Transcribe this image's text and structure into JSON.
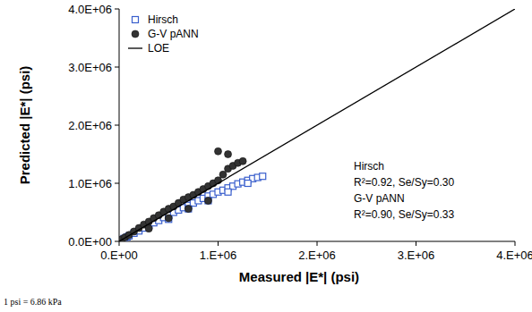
{
  "chart_data": {
    "type": "scatter",
    "x_label": "Measured |E*| (psi)",
    "y_label": "Predicted |E*| (psi)",
    "footnote": "1 psi = 6.86 kPa",
    "annotations": [
      "Hirsch",
      "R²=0.92, Se/Sy=0.30",
      "G-V pANN",
      "R²=0.90, Se/Sy=0.33"
    ],
    "xlim": [
      0,
      4000000
    ],
    "ylim": [
      0,
      4000000
    ],
    "xticks": [
      {
        "value": 0,
        "label": "0.E+00"
      },
      {
        "value": 1000000,
        "label": "1.E+06"
      },
      {
        "value": 2000000,
        "label": "2.E+06"
      },
      {
        "value": 3000000,
        "label": "3.E+06"
      },
      {
        "value": 4000000,
        "label": "4.E+06"
      }
    ],
    "yticks": [
      {
        "value": 0,
        "label": "0.0E+00"
      },
      {
        "value": 1000000,
        "label": "1.0E+06"
      },
      {
        "value": 2000000,
        "label": "2.0E+06"
      },
      {
        "value": 3000000,
        "label": "3.0E+06"
      },
      {
        "value": 4000000,
        "label": "4.0E+06"
      }
    ],
    "grid": false,
    "legend": "upper left",
    "series": [
      {
        "name": "Hirsch",
        "type": "scatter",
        "marker": "square",
        "color": "#3a5fcd",
        "x": [
          20000,
          50000,
          80000,
          100000,
          150000,
          200000,
          250000,
          300000,
          350000,
          400000,
          450000,
          500000,
          550000,
          600000,
          650000,
          700000,
          750000,
          800000,
          850000,
          900000,
          950000,
          1000000,
          1050000,
          1100000,
          1150000,
          1200000,
          1250000,
          1300000,
          1350000,
          1400000,
          1450000,
          500000,
          700000,
          900000,
          1100000,
          1300000
        ],
        "values": [
          25000,
          50000,
          75000,
          95000,
          140000,
          180000,
          230000,
          270000,
          320000,
          360000,
          410000,
          450000,
          500000,
          540000,
          580000,
          620000,
          660000,
          700000,
          740000,
          780000,
          810000,
          850000,
          880000,
          920000,
          950000,
          990000,
          1020000,
          1050000,
          1080000,
          1100000,
          1120000,
          380000,
          560000,
          700000,
          850000,
          1000000
        ]
      },
      {
        "name": "G-V pANN",
        "type": "scatter",
        "marker": "circle",
        "color": "#333333",
        "x": [
          10000,
          30000,
          60000,
          100000,
          150000,
          200000,
          250000,
          300000,
          350000,
          400000,
          450000,
          500000,
          550000,
          600000,
          650000,
          700000,
          750000,
          800000,
          850000,
          900000,
          950000,
          1000000,
          1050000,
          1100000,
          1150000,
          1200000,
          1250000,
          300000,
          500000,
          700000,
          900000,
          1000000,
          1100000
        ],
        "values": [
          15000,
          40000,
          70000,
          110000,
          170000,
          230000,
          290000,
          340000,
          400000,
          450000,
          510000,
          560000,
          600000,
          660000,
          720000,
          760000,
          800000,
          850000,
          900000,
          950000,
          1000000,
          1050000,
          1150000,
          1250000,
          1300000,
          1350000,
          1380000,
          220000,
          400000,
          560000,
          700000,
          1550000,
          1500000
        ]
      },
      {
        "name": "LOE",
        "type": "line",
        "line_style": "solid",
        "color": "#000000",
        "x": [
          0,
          4000000
        ],
        "values": [
          0,
          4000000
        ]
      }
    ]
  }
}
